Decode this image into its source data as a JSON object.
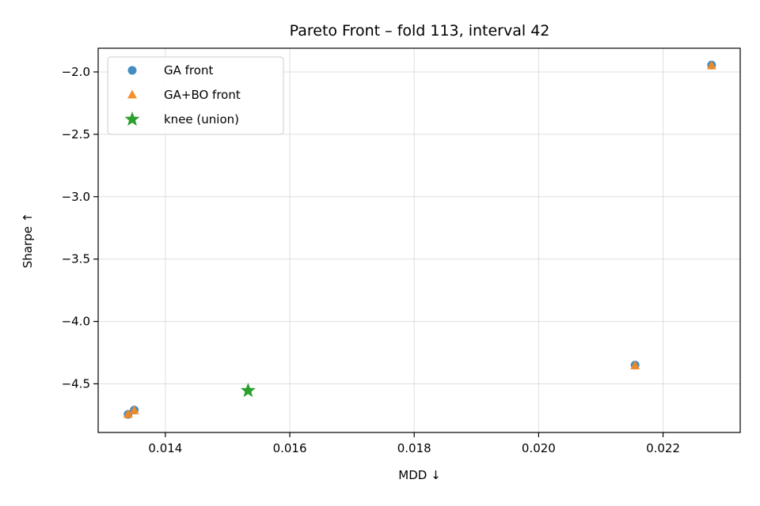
{
  "chart_data": {
    "type": "scatter",
    "title": "Pareto Front – fold 113, interval 42",
    "xlabel": "MDD ↓",
    "ylabel": "Sharpe ↑",
    "xlim": [
      0.01292,
      0.02324
    ],
    "ylim": [
      -4.89,
      -1.81
    ],
    "grid": true,
    "legend_position": "top-left",
    "x_ticks": [
      0.014,
      0.016,
      0.018,
      0.02,
      0.022
    ],
    "x_tick_labels": [
      "0.014",
      "0.016",
      "0.018",
      "0.020",
      "0.022"
    ],
    "y_ticks": [
      -2.0,
      -2.5,
      -3.0,
      -3.5,
      -4.0,
      -4.5
    ],
    "y_tick_labels": [
      "−2.0",
      "−2.5",
      "−3.0",
      "−3.5",
      "−4.0",
      "−4.5"
    ],
    "series": [
      {
        "name": "GA front",
        "marker": "circle",
        "color": "#3a87bf",
        "points": [
          {
            "x": 0.0134,
            "y": -4.745
          },
          {
            "x": 0.0135,
            "y": -4.71
          },
          {
            "x": 0.02155,
            "y": -4.35
          },
          {
            "x": 0.02278,
            "y": -1.945
          }
        ]
      },
      {
        "name": "GA+BO front",
        "marker": "triangle",
        "color": "#f58a22",
        "points": [
          {
            "x": 0.0134,
            "y": -4.745
          },
          {
            "x": 0.0135,
            "y": -4.715
          },
          {
            "x": 0.02155,
            "y": -4.355
          },
          {
            "x": 0.02278,
            "y": -1.95
          }
        ]
      },
      {
        "name": "knee (union)",
        "marker": "star",
        "color": "#2ca02c",
        "points": [
          {
            "x": 0.01533,
            "y": -4.555
          }
        ]
      }
    ]
  }
}
